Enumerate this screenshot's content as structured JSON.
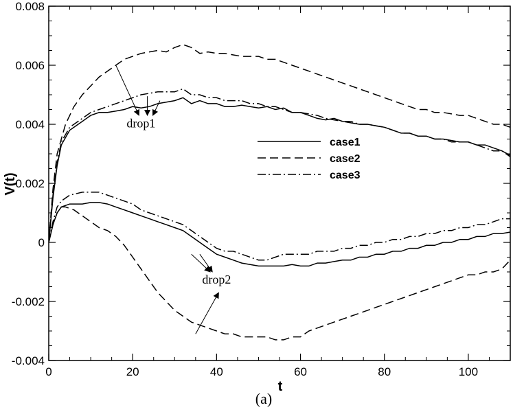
{
  "chart_data": {
    "type": "line",
    "title": "",
    "xlabel": "t",
    "ylabel": "V(t)",
    "caption": "(a)",
    "xlim": [
      0,
      110
    ],
    "ylim": [
      -0.004,
      0.008
    ],
    "xticks": [
      0,
      20,
      40,
      60,
      80,
      100
    ],
    "xtick_labels": [
      "0",
      "20",
      "40",
      "60",
      "80",
      "100"
    ],
    "yticks": [
      -0.004,
      -0.002,
      0,
      0.002,
      0.004,
      0.006,
      0.008
    ],
    "ytick_labels": [
      "-0.004",
      "-0.002",
      "0",
      "0.002",
      "0.004",
      "0.006",
      "0.008"
    ],
    "legend": {
      "position": "center-right",
      "entries": [
        "case1",
        "case2",
        "case3"
      ]
    },
    "series": [
      {
        "name": "case1",
        "group": "drop1",
        "dash": "solid",
        "x": [
          0,
          1,
          2,
          3,
          5,
          8,
          10,
          12,
          14,
          16,
          18,
          20,
          22,
          24,
          26,
          28,
          30,
          32,
          34,
          36,
          38,
          40,
          42,
          44,
          46,
          48,
          50,
          52,
          54,
          56,
          58,
          60,
          62,
          64,
          66,
          68,
          70,
          72,
          74,
          76,
          78,
          80,
          82,
          84,
          86,
          88,
          90,
          92,
          94,
          96,
          98,
          100,
          102,
          104,
          106,
          108,
          110
        ],
        "y": [
          0,
          0.0015,
          0.0026,
          0.0033,
          0.0038,
          0.0041,
          0.0043,
          0.0044,
          0.0044,
          0.00445,
          0.0045,
          0.0046,
          0.00455,
          0.0046,
          0.0047,
          0.00475,
          0.0048,
          0.0049,
          0.0047,
          0.0048,
          0.0047,
          0.0047,
          0.0046,
          0.0046,
          0.00465,
          0.0046,
          0.00455,
          0.0046,
          0.0045,
          0.00455,
          0.0044,
          0.0044,
          0.0043,
          0.0042,
          0.00415,
          0.0042,
          0.0041,
          0.00405,
          0.004,
          0.004,
          0.00395,
          0.0039,
          0.0038,
          0.0037,
          0.0037,
          0.0036,
          0.0036,
          0.0035,
          0.0035,
          0.00345,
          0.0034,
          0.0034,
          0.0033,
          0.0033,
          0.0032,
          0.0031,
          0.00295
        ]
      },
      {
        "name": "case2",
        "group": "drop1",
        "dash": "dashed",
        "x": [
          0,
          1,
          2,
          4,
          6,
          8,
          10,
          12,
          14,
          16,
          18,
          20,
          22,
          24,
          26,
          28,
          30,
          32,
          34,
          36,
          38,
          40,
          42,
          44,
          46,
          48,
          50,
          52,
          54,
          56,
          58,
          60,
          62,
          64,
          66,
          68,
          70,
          72,
          74,
          76,
          78,
          80,
          82,
          84,
          86,
          88,
          90,
          92,
          94,
          96,
          98,
          100,
          102,
          104,
          106,
          108,
          110
        ],
        "y": [
          0,
          0.0018,
          0.003,
          0.004,
          0.0046,
          0.005,
          0.0053,
          0.0056,
          0.0058,
          0.006,
          0.0062,
          0.0063,
          0.0064,
          0.00645,
          0.0065,
          0.00645,
          0.0066,
          0.0067,
          0.0066,
          0.0064,
          0.00645,
          0.0064,
          0.0064,
          0.00635,
          0.0063,
          0.0063,
          0.0063,
          0.0062,
          0.0062,
          0.0061,
          0.006,
          0.0059,
          0.0058,
          0.0057,
          0.0056,
          0.0055,
          0.0054,
          0.0053,
          0.0052,
          0.0051,
          0.005,
          0.0049,
          0.0048,
          0.0047,
          0.0046,
          0.0045,
          0.0045,
          0.0044,
          0.0044,
          0.00435,
          0.0043,
          0.0043,
          0.0042,
          0.0041,
          0.004,
          0.004,
          0.0039
        ]
      },
      {
        "name": "case3",
        "group": "drop1",
        "dash": "dashdot",
        "x": [
          0,
          1,
          2,
          3,
          5,
          8,
          10,
          12,
          14,
          16,
          18,
          20,
          22,
          24,
          26,
          28,
          30,
          32,
          34,
          36,
          38,
          40,
          42,
          44,
          46,
          48,
          50,
          52,
          54,
          56,
          58,
          60,
          62,
          64,
          66,
          68,
          70,
          72,
          74,
          76,
          78,
          80,
          82,
          84,
          86,
          88,
          90,
          92,
          94,
          96,
          98,
          100,
          102,
          104,
          106,
          108,
          110
        ],
        "y": [
          0,
          0.0016,
          0.0027,
          0.0034,
          0.0039,
          0.0042,
          0.0044,
          0.0045,
          0.0046,
          0.0047,
          0.0048,
          0.0049,
          0.005,
          0.00505,
          0.0051,
          0.0051,
          0.0051,
          0.0052,
          0.005,
          0.005,
          0.0049,
          0.0049,
          0.0048,
          0.0048,
          0.0048,
          0.0047,
          0.0047,
          0.0046,
          0.0046,
          0.0045,
          0.0044,
          0.0044,
          0.00435,
          0.0043,
          0.0042,
          0.00415,
          0.0041,
          0.0041,
          0.004,
          0.004,
          0.00395,
          0.0039,
          0.0038,
          0.0037,
          0.0037,
          0.0036,
          0.0036,
          0.0035,
          0.0035,
          0.0034,
          0.0034,
          0.0034,
          0.0033,
          0.0032,
          0.0031,
          0.0031,
          0.0029
        ]
      },
      {
        "name": "case1",
        "group": "drop2",
        "dash": "solid",
        "x": [
          0,
          1,
          2,
          3,
          5,
          8,
          10,
          12,
          14,
          16,
          18,
          20,
          22,
          24,
          26,
          28,
          30,
          32,
          34,
          36,
          38,
          40,
          42,
          44,
          46,
          48,
          50,
          52,
          54,
          56,
          58,
          60,
          62,
          64,
          66,
          68,
          70,
          72,
          74,
          76,
          78,
          80,
          82,
          84,
          86,
          88,
          90,
          92,
          94,
          96,
          98,
          100,
          102,
          104,
          106,
          108,
          110
        ],
        "y": [
          0,
          0.0006,
          0.001,
          0.0012,
          0.0013,
          0.0013,
          0.00135,
          0.00135,
          0.0013,
          0.0012,
          0.0011,
          0.001,
          0.0009,
          0.0008,
          0.0007,
          0.0006,
          0.0005,
          0.0004,
          0.0002,
          0.0,
          -0.0002,
          -0.0004,
          -0.0005,
          -0.0006,
          -0.0007,
          -0.00075,
          -0.0008,
          -0.0008,
          -0.0008,
          -0.0008,
          -0.00075,
          -0.0008,
          -0.0008,
          -0.0007,
          -0.0007,
          -0.00065,
          -0.0006,
          -0.0006,
          -0.0005,
          -0.0005,
          -0.0004,
          -0.0004,
          -0.0003,
          -0.0003,
          -0.0002,
          -0.0002,
          -0.0001,
          -0.0001,
          0.0,
          0.0,
          0.0001,
          0.0001,
          0.0002,
          0.0002,
          0.0003,
          0.0003,
          0.00035
        ]
      },
      {
        "name": "case2",
        "group": "drop2",
        "dash": "dashed",
        "x": [
          0,
          1,
          2,
          3,
          4,
          6,
          8,
          10,
          12,
          14,
          16,
          18,
          20,
          22,
          24,
          26,
          28,
          30,
          32,
          34,
          36,
          38,
          40,
          42,
          44,
          46,
          48,
          50,
          52,
          54,
          56,
          58,
          60,
          62,
          64,
          66,
          68,
          70,
          72,
          74,
          76,
          78,
          80,
          82,
          84,
          86,
          88,
          90,
          92,
          94,
          96,
          98,
          100,
          102,
          104,
          106,
          108,
          110
        ],
        "y": [
          0,
          0.0006,
          0.001,
          0.0012,
          0.0012,
          0.0011,
          0.0009,
          0.0007,
          0.0005,
          0.0004,
          0.0002,
          -0.0001,
          -0.0005,
          -0.0009,
          -0.0013,
          -0.0017,
          -0.002,
          -0.0023,
          -0.0025,
          -0.0027,
          -0.0028,
          -0.0029,
          -0.003,
          -0.0031,
          -0.0031,
          -0.0032,
          -0.0032,
          -0.0032,
          -0.0032,
          -0.0033,
          -0.0033,
          -0.0032,
          -0.0032,
          -0.003,
          -0.0029,
          -0.0028,
          -0.0027,
          -0.0026,
          -0.0025,
          -0.0024,
          -0.0023,
          -0.0022,
          -0.0021,
          -0.002,
          -0.0019,
          -0.0018,
          -0.0017,
          -0.0016,
          -0.0015,
          -0.0014,
          -0.0013,
          -0.0012,
          -0.0011,
          -0.0011,
          -0.001,
          -0.001,
          -0.0009,
          -0.0006
        ]
      },
      {
        "name": "case3",
        "group": "drop2",
        "dash": "dashdot",
        "x": [
          0,
          1,
          2,
          3,
          5,
          8,
          10,
          12,
          14,
          16,
          18,
          20,
          22,
          24,
          26,
          28,
          30,
          32,
          34,
          36,
          38,
          40,
          42,
          44,
          46,
          48,
          50,
          52,
          54,
          56,
          58,
          60,
          62,
          64,
          66,
          68,
          70,
          72,
          74,
          76,
          78,
          80,
          82,
          84,
          86,
          88,
          90,
          92,
          94,
          96,
          98,
          100,
          102,
          104,
          106,
          108,
          110
        ],
        "y": [
          0,
          0.0007,
          0.0012,
          0.0014,
          0.0016,
          0.0017,
          0.0017,
          0.0017,
          0.0016,
          0.0015,
          0.0014,
          0.0013,
          0.0011,
          0.001,
          0.0009,
          0.0008,
          0.0007,
          0.0006,
          0.0004,
          0.0002,
          0.0,
          -0.0002,
          -0.0003,
          -0.0003,
          -0.0004,
          -0.0005,
          -0.0006,
          -0.0006,
          -0.0005,
          -0.0004,
          -0.0004,
          -0.0004,
          -0.0004,
          -0.0003,
          -0.0003,
          -0.0003,
          -0.0002,
          -0.0002,
          -0.0001,
          -0.0001,
          0.0,
          0.0,
          0.0001,
          0.0001,
          0.0002,
          0.0002,
          0.0003,
          0.0003,
          0.0004,
          0.0004,
          0.0005,
          0.0005,
          0.0006,
          0.0006,
          0.0007,
          0.0008,
          0.0008
        ]
      }
    ],
    "annotations": [
      {
        "text": "drop1",
        "anchor": [
          22,
          0.0039
        ],
        "arrows": [
          [
            16,
            0.006,
            21.5,
            0.0043
          ],
          [
            23.5,
            0.00495,
            23.5,
            0.0043
          ],
          [
            26.5,
            0.0048,
            24.8,
            0.0043
          ]
        ]
      },
      {
        "text": "drop2",
        "anchor": [
          40,
          -0.0014
        ],
        "arrows": [
          [
            34,
            -0.0004,
            38.5,
            -0.001
          ],
          [
            36,
            -0.0004,
            39,
            -0.001
          ],
          [
            35,
            -0.0031,
            40.5,
            -0.0017
          ]
        ]
      }
    ]
  }
}
